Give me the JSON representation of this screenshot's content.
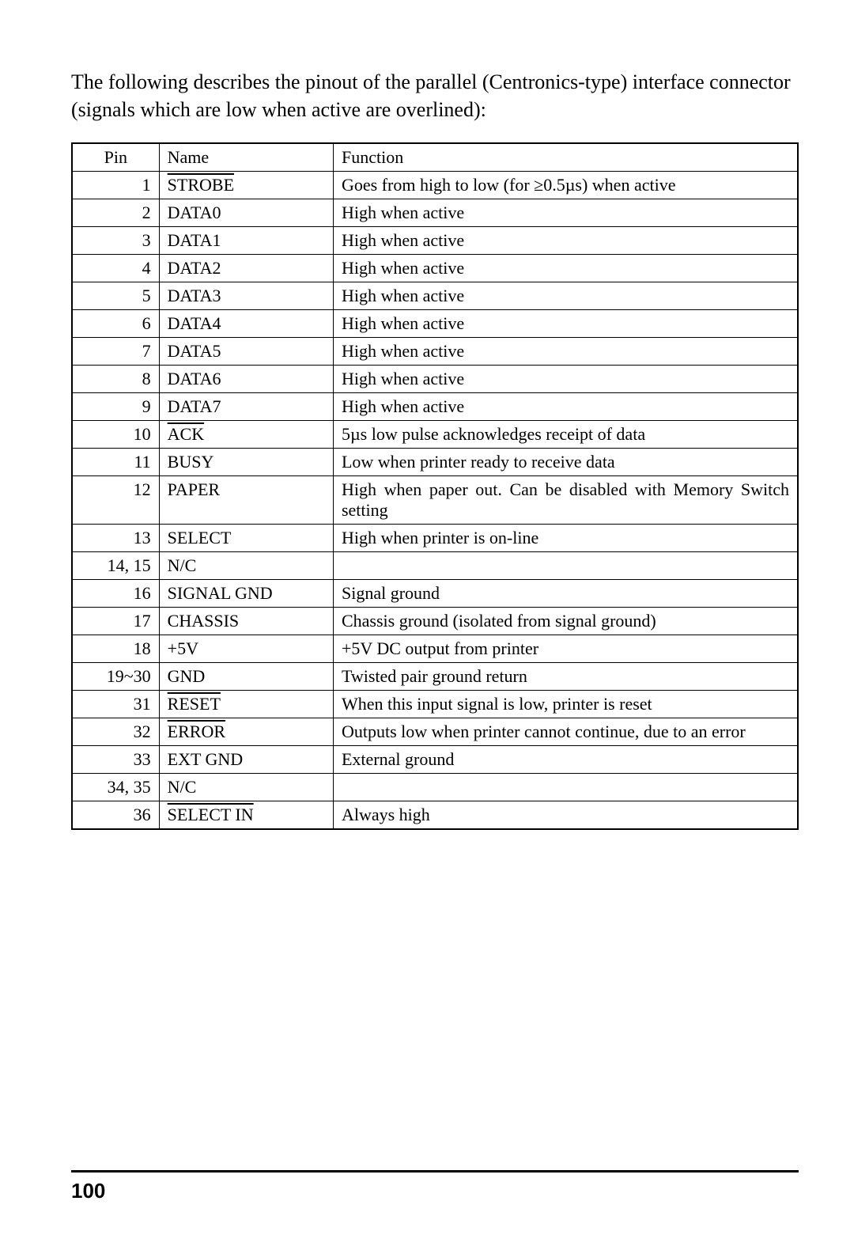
{
  "intro": "The following describes the pinout of the parallel (Centronics-type) interface connector (signals which are low when active are overlined):",
  "headers": {
    "pin": "Pin",
    "name": "Name",
    "function": "Function"
  },
  "rows": [
    {
      "pin": "1",
      "name": "STROBE",
      "overline": true,
      "function": "Goes from high to low (for ≥0.5µs) when active"
    },
    {
      "pin": "2",
      "name": "DATA0",
      "overline": false,
      "function": "High when active"
    },
    {
      "pin": "3",
      "name": "DATA1",
      "overline": false,
      "function": "High when active"
    },
    {
      "pin": "4",
      "name": "DATA2",
      "overline": false,
      "function": "High when active"
    },
    {
      "pin": "5",
      "name": "DATA3",
      "overline": false,
      "function": "High when active"
    },
    {
      "pin": "6",
      "name": "DATA4",
      "overline": false,
      "function": "High when active"
    },
    {
      "pin": "7",
      "name": "DATA5",
      "overline": false,
      "function": "High when active"
    },
    {
      "pin": "8",
      "name": "DATA6",
      "overline": false,
      "function": "High when active"
    },
    {
      "pin": "9",
      "name": "DATA7",
      "overline": false,
      "function": "High when active"
    },
    {
      "pin": "10",
      "name": "ACK",
      "overline": true,
      "function": "5µs low pulse acknowledges receipt of data"
    },
    {
      "pin": "11",
      "name": "BUSY",
      "overline": false,
      "function": "Low when printer ready to receive data"
    },
    {
      "pin": "12",
      "name": "PAPER",
      "overline": false,
      "function": "High when paper out. Can be disabled with Memory Switch setting",
      "justify": true
    },
    {
      "pin": "13",
      "name": "SELECT",
      "overline": false,
      "function": "High when printer is on-line"
    },
    {
      "pin": "14, 15",
      "name": "N/C",
      "overline": false,
      "function": ""
    },
    {
      "pin": "16",
      "name": "SIGNAL GND",
      "overline": false,
      "function": "Signal ground"
    },
    {
      "pin": "17",
      "name": "CHASSIS",
      "overline": false,
      "function": "Chassis ground (isolated from signal ground)"
    },
    {
      "pin": "18",
      "name": "+5V",
      "overline": false,
      "function": "+5V DC output from printer"
    },
    {
      "pin": "19~30",
      "name": "GND",
      "overline": false,
      "function": "Twisted pair ground return"
    },
    {
      "pin": "31",
      "name": "RESET",
      "overline": true,
      "function": "When this input signal is low, printer is reset"
    },
    {
      "pin": "32",
      "name": "ERROR",
      "overline": true,
      "function": "Outputs low when printer cannot continue, due to an error"
    },
    {
      "pin": "33",
      "name": "EXT GND",
      "overline": false,
      "function": "External ground"
    },
    {
      "pin": "34, 35",
      "name": "N/C",
      "overline": false,
      "function": ""
    },
    {
      "pin": "36",
      "name": "SELECT IN",
      "overline": true,
      "function": "Always high"
    }
  ],
  "pageNumber": "100"
}
